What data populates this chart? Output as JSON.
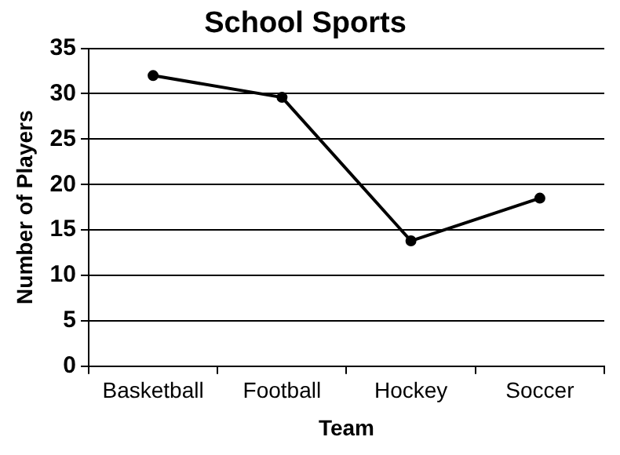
{
  "chart_data": {
    "type": "line",
    "title": "School Sports",
    "xlabel": "Team",
    "ylabel": "Number of Players",
    "categories": [
      "Basketball",
      "Football",
      "Hockey",
      "Soccer"
    ],
    "series": [
      {
        "color": "#000000",
        "values": [
          32,
          29.6,
          13.8,
          18.5
        ]
      }
    ],
    "ylim": [
      0,
      35
    ],
    "yticks": [
      0,
      5,
      10,
      15,
      20,
      25,
      30,
      35
    ],
    "grid": "y",
    "legend": false,
    "marker": "circle",
    "line_style": "solid"
  }
}
